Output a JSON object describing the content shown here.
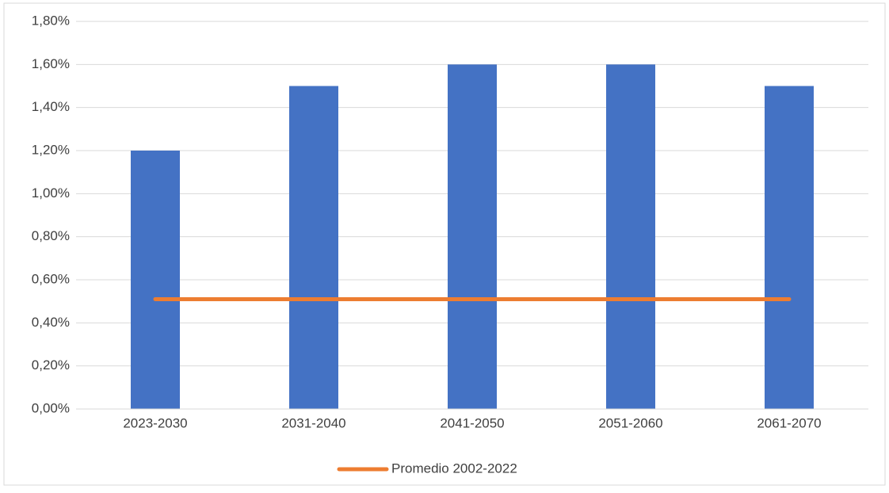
{
  "chart_data": {
    "type": "bar",
    "categories": [
      "2023-2030",
      "2031-2040",
      "2041-2050",
      "2051-2060",
      "2061-2070"
    ],
    "series": [
      {
        "type": "bar",
        "color": "#4472c4",
        "values": [
          1.2,
          1.5,
          1.6,
          1.6,
          1.5
        ]
      },
      {
        "type": "line",
        "name": "Promedio 2002-2022",
        "color": "#ed7d31",
        "values": [
          0.51,
          0.51,
          0.51,
          0.51,
          0.51
        ]
      }
    ],
    "ylim": [
      0,
      1.8
    ],
    "yticks": [
      {
        "value": 0,
        "label": "0,00%"
      },
      {
        "value": 0.2,
        "label": "0,20%"
      },
      {
        "value": 0.4,
        "label": "0,40%"
      },
      {
        "value": 0.6,
        "label": "0,60%"
      },
      {
        "value": 0.8,
        "label": "0,80%"
      },
      {
        "value": 1.0,
        "label": "1,00%"
      },
      {
        "value": 1.2,
        "label": "1,20%"
      },
      {
        "value": 1.4,
        "label": "1,40%"
      },
      {
        "value": 1.6,
        "label": "1,60%"
      },
      {
        "value": 1.8,
        "label": "1,80%"
      }
    ],
    "grid": true,
    "legend": "bottom"
  }
}
